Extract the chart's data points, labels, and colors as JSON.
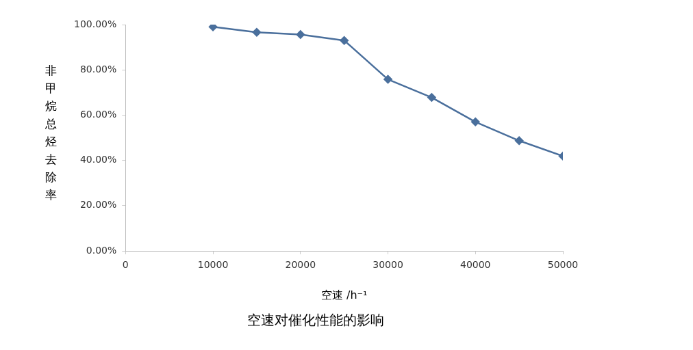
{
  "chart_data": {
    "type": "line",
    "title": "空速对催化性能的影响",
    "xlabel": "空速 /h⁻¹",
    "ylabel": "非甲烷总烃去除率",
    "x": [
      10000,
      15000,
      20000,
      25000,
      30000,
      35000,
      40000,
      45000,
      50000
    ],
    "series": [
      {
        "color": "#4a6f9c",
        "values": [
          99.0,
          96.6,
          95.6,
          93.0,
          75.8,
          67.8,
          57.0,
          48.7,
          41.9
        ]
      }
    ],
    "xlim": [
      0,
      50000
    ],
    "xticks": [
      0,
      10000,
      20000,
      30000,
      40000,
      50000
    ],
    "ylim": [
      0,
      100
    ],
    "yticks": [
      {
        "value": 0,
        "label": "0.00%"
      },
      {
        "value": 20,
        "label": "20.00%"
      },
      {
        "value": 40,
        "label": "40.00%"
      },
      {
        "value": 60,
        "label": "60.00%"
      },
      {
        "value": 80,
        "label": "80.00%"
      },
      {
        "value": 100,
        "label": "100.00%"
      }
    ],
    "grid": false,
    "legend": false,
    "marker": "diamond",
    "line_style": "solid"
  }
}
